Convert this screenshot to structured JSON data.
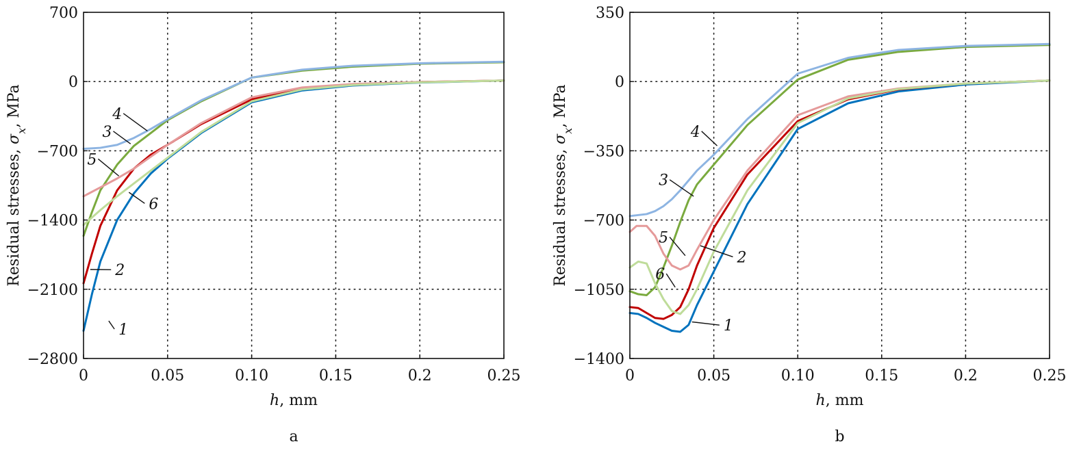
{
  "chart_data": [
    {
      "type": "line",
      "panel_label": "a",
      "xlabel_var": "h",
      "xlabel_unit": ", mm",
      "ylabel_text": "Residual stresses, ",
      "ylabel_var": "σ",
      "ylabel_sub": "x",
      "ylabel_unit": ", MPa",
      "xlim": [
        0,
        0.25
      ],
      "ylim": [
        -2800,
        700
      ],
      "xticks": [
        0,
        0.05,
        0.1,
        0.15,
        0.2,
        0.25
      ],
      "xtick_labels": [
        "0",
        "0.05",
        "0.10",
        "0.15",
        "0.2",
        "0.25"
      ],
      "yticks": [
        -2800,
        -2100,
        -1400,
        -700,
        0,
        700
      ],
      "ytick_labels": [
        "−2800",
        "−2100",
        "−1400",
        "−700",
        "0",
        "700"
      ],
      "grid": "dotted",
      "series": [
        {
          "name": "1",
          "color": "#0072bd",
          "x": [
            0,
            0.005,
            0.01,
            0.02,
            0.03,
            0.04,
            0.05,
            0.07,
            0.1,
            0.13,
            0.16,
            0.2,
            0.25
          ],
          "y": [
            -2520,
            -2150,
            -1820,
            -1400,
            -1130,
            -930,
            -780,
            -520,
            -210,
            -90,
            -40,
            -10,
            10
          ],
          "label_at": [
            0.015,
            -2420
          ],
          "label_pos": [
            0.02,
            -2530
          ]
        },
        {
          "name": "2",
          "color": "#c00000",
          "x": [
            0,
            0.005,
            0.01,
            0.02,
            0.03,
            0.04,
            0.05,
            0.07,
            0.1,
            0.13,
            0.16,
            0.2,
            0.25
          ],
          "y": [
            -2040,
            -1740,
            -1460,
            -1100,
            -880,
            -740,
            -640,
            -430,
            -180,
            -70,
            -30,
            -5,
            10
          ],
          "label_at": [
            0.004,
            -1900
          ],
          "label_pos": [
            0.018,
            -1930
          ]
        },
        {
          "name": "3",
          "color": "#7aaa3e",
          "x": [
            0,
            0.005,
            0.01,
            0.02,
            0.03,
            0.04,
            0.05,
            0.07,
            0.1,
            0.13,
            0.16,
            0.2,
            0.25
          ],
          "y": [
            -1560,
            -1320,
            -1100,
            -840,
            -650,
            -520,
            -390,
            -200,
            40,
            110,
            150,
            180,
            195
          ],
          "label_at": [
            0.028,
            -630
          ],
          "label_pos": [
            0.012,
            -530
          ]
        },
        {
          "name": "4",
          "color": "#8db4e2",
          "x": [
            0,
            0.01,
            0.02,
            0.03,
            0.04,
            0.05,
            0.07,
            0.1,
            0.13,
            0.16,
            0.2,
            0.25
          ],
          "y": [
            -680,
            -670,
            -640,
            -570,
            -480,
            -380,
            -190,
            40,
            120,
            160,
            185,
            200
          ],
          "label_at": [
            0.038,
            -500
          ],
          "label_pos": [
            0.018,
            -350
          ]
        },
        {
          "name": "5",
          "color": "#e59a9a",
          "x": [
            0,
            0.01,
            0.02,
            0.03,
            0.04,
            0.05,
            0.07,
            0.1,
            0.13,
            0.16,
            0.2,
            0.25
          ],
          "y": [
            -1160,
            -1070,
            -980,
            -880,
            -760,
            -640,
            -420,
            -160,
            -60,
            -25,
            -5,
            10
          ],
          "label_at": [
            0.021,
            -955
          ],
          "label_pos": [
            0.003,
            -810
          ]
        },
        {
          "name": "6",
          "color": "#bfdc9a",
          "x": [
            0,
            0.01,
            0.02,
            0.03,
            0.04,
            0.05,
            0.07,
            0.1,
            0.13,
            0.16,
            0.2,
            0.25
          ],
          "y": [
            -1450,
            -1300,
            -1160,
            -1030,
            -900,
            -770,
            -510,
            -200,
            -80,
            -35,
            -8,
            10
          ],
          "label_at": [
            0.027,
            -1120
          ],
          "label_pos": [
            0.038,
            -1260
          ]
        }
      ]
    },
    {
      "type": "line",
      "panel_label": "b",
      "xlabel_var": "h",
      "xlabel_unit": ", mm",
      "ylabel_text": "Residual stresses, ",
      "ylabel_var": "σ",
      "ylabel_sub": "x",
      "ylabel_unit": ", MPa",
      "xlim": [
        0,
        0.25
      ],
      "ylim": [
        -1400,
        350
      ],
      "xticks": [
        0,
        0.05,
        0.1,
        0.15,
        0.2,
        0.25
      ],
      "xtick_labels": [
        "0",
        "0.05",
        "0.10",
        "0.15",
        "0.2",
        "0.25"
      ],
      "yticks": [
        -1400,
        -1050,
        -700,
        -350,
        0,
        350
      ],
      "ytick_labels": [
        "−1400",
        "−1050",
        "−700",
        "−350",
        "0",
        "350"
      ],
      "grid": "dotted",
      "series": [
        {
          "name": "1",
          "color": "#0072bd",
          "x": [
            0,
            0.005,
            0.01,
            0.015,
            0.02,
            0.025,
            0.03,
            0.035,
            0.04,
            0.05,
            0.07,
            0.1,
            0.13,
            0.16,
            0.2,
            0.25
          ],
          "y": [
            -1170,
            -1175,
            -1195,
            -1220,
            -1240,
            -1260,
            -1265,
            -1230,
            -1130,
            -960,
            -620,
            -240,
            -110,
            -50,
            -15,
            5
          ],
          "label_at": [
            0.037,
            -1215
          ],
          "label_pos": [
            0.055,
            -1245
          ]
        },
        {
          "name": "2",
          "color": "#c00000",
          "x": [
            0,
            0.005,
            0.01,
            0.015,
            0.02,
            0.025,
            0.03,
            0.035,
            0.04,
            0.05,
            0.07,
            0.1,
            0.13,
            0.16,
            0.2,
            0.25
          ],
          "y": [
            -1140,
            -1145,
            -1170,
            -1195,
            -1200,
            -1180,
            -1140,
            -1050,
            -930,
            -740,
            -470,
            -200,
            -90,
            -40,
            -10,
            5
          ],
          "label_at": [
            0.042,
            -830
          ],
          "label_pos": [
            0.063,
            -900
          ]
        },
        {
          "name": "3",
          "color": "#7aaa3e",
          "x": [
            0,
            0.005,
            0.01,
            0.015,
            0.02,
            0.025,
            0.03,
            0.035,
            0.04,
            0.05,
            0.07,
            0.1,
            0.13,
            0.16,
            0.2,
            0.25
          ],
          "y": [
            -1060,
            -1075,
            -1080,
            -1040,
            -940,
            -830,
            -710,
            -600,
            -520,
            -420,
            -220,
            10,
            110,
            150,
            175,
            185
          ],
          "label_at": [
            0.038,
            -580
          ],
          "label_pos": [
            0.018,
            -510
          ]
        },
        {
          "name": "4",
          "color": "#8db4e2",
          "x": [
            0,
            0.01,
            0.015,
            0.02,
            0.025,
            0.03,
            0.035,
            0.04,
            0.05,
            0.07,
            0.1,
            0.13,
            0.16,
            0.2,
            0.25
          ],
          "y": [
            -680,
            -670,
            -655,
            -630,
            -595,
            -550,
            -500,
            -450,
            -370,
            -190,
            40,
            120,
            160,
            180,
            190
          ],
          "label_at": [
            0.052,
            -325
          ],
          "label_pos": [
            0.037,
            -265
          ]
        },
        {
          "name": "5",
          "color": "#e59a9a",
          "x": [
            0,
            0.004,
            0.01,
            0.015,
            0.02,
            0.025,
            0.03,
            0.035,
            0.04,
            0.05,
            0.07,
            0.1,
            0.13,
            0.16,
            0.2,
            0.25
          ],
          "y": [
            -760,
            -730,
            -730,
            -780,
            -870,
            -930,
            -950,
            -930,
            -850,
            -700,
            -450,
            -170,
            -75,
            -35,
            -10,
            5
          ],
          "label_at": [
            0.033,
            -880
          ],
          "label_pos": [
            0.018,
            -800
          ]
        },
        {
          "name": "6",
          "color": "#bfdc9a",
          "x": [
            0,
            0.005,
            0.01,
            0.015,
            0.02,
            0.025,
            0.03,
            0.035,
            0.04,
            0.05,
            0.07,
            0.1,
            0.13,
            0.16,
            0.2,
            0.25
          ],
          "y": [
            -940,
            -910,
            -920,
            -1020,
            -1100,
            -1160,
            -1175,
            -1130,
            -1050,
            -860,
            -550,
            -210,
            -85,
            -38,
            -10,
            5
          ],
          "label_at": [
            0.027,
            -1040
          ],
          "label_pos": [
            0.016,
            -985
          ]
        }
      ]
    }
  ]
}
